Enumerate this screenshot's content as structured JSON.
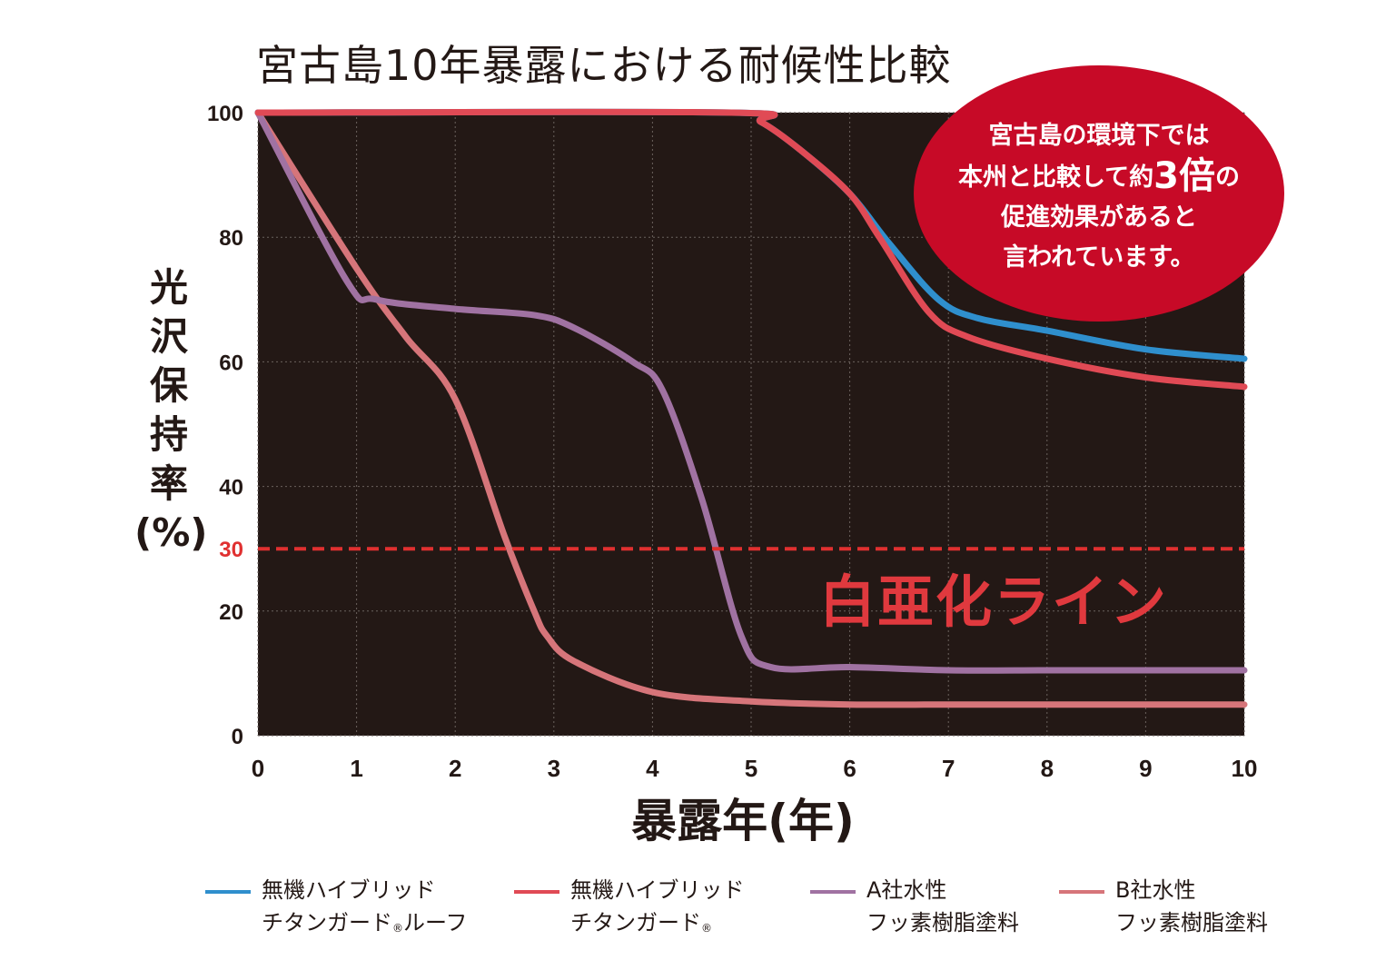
{
  "title": "宮古島10年暴露における耐候性比較",
  "callout": {
    "line1": "宮古島の環境下では",
    "line2_pre": "本州と比較して約",
    "line2_big": "3倍",
    "line2_post": "の",
    "line3": "促進効果があると",
    "line4": "言われています。"
  },
  "chalk_label": "白亜化ライン",
  "colors": {
    "plot_bg": "#231815",
    "roof": "#2f8fcd",
    "titanguard": "#e04a55",
    "a_company": "#a072a2",
    "b_company": "#d6757a",
    "threshold": "#e03030"
  },
  "chart_data": {
    "type": "line",
    "title": "宮古島10年暴露における耐候性比較",
    "xlabel": "暴露年(年)",
    "ylabel_chars": [
      "光",
      "沢",
      "保",
      "持",
      "率",
      "(%)"
    ],
    "xlim": [
      0,
      10
    ],
    "ylim": [
      0,
      100
    ],
    "x_ticks": [
      0,
      1,
      2,
      3,
      4,
      5,
      6,
      7,
      8,
      9,
      10
    ],
    "y_ticks": [
      0,
      20,
      40,
      60,
      80,
      100
    ],
    "threshold": {
      "value": 30,
      "label": "30"
    },
    "grid": true,
    "legend_position": "bottom",
    "series": [
      {
        "key": "b_company",
        "name_line1": "B社水性",
        "name_line2": "フッ素樹脂塗料",
        "points": [
          [
            0,
            100
          ],
          [
            1,
            75
          ],
          [
            1.5,
            64
          ],
          [
            2,
            54
          ],
          [
            2.5,
            32
          ],
          [
            2.8,
            20
          ],
          [
            2.93,
            16
          ],
          [
            3.2,
            12
          ],
          [
            4,
            7
          ],
          [
            5,
            5.5
          ],
          [
            6,
            5
          ],
          [
            7,
            5
          ],
          [
            8,
            5
          ],
          [
            9,
            5
          ],
          [
            10,
            5
          ]
        ]
      },
      {
        "key": "a_company",
        "name_line1": "A社水性",
        "name_line2": "フッ素樹脂塗料",
        "points": [
          [
            0,
            100
          ],
          [
            0.9,
            73
          ],
          [
            1.2,
            70
          ],
          [
            2,
            68.5
          ],
          [
            2.8,
            67.5
          ],
          [
            3.2,
            65.5
          ],
          [
            3.8,
            60
          ],
          [
            4.1,
            55.5
          ],
          [
            4.5,
            38
          ],
          [
            4.9,
            16
          ],
          [
            5.2,
            11
          ],
          [
            6,
            11
          ],
          [
            7,
            10.5
          ],
          [
            8,
            10.5
          ],
          [
            9,
            10.5
          ],
          [
            10,
            10.5
          ]
        ]
      },
      {
        "key": "roof",
        "name_line1": "無機ハイブリッド",
        "name_line2": "チタンガード",
        "name_line2_suffix": "ルーフ",
        "points": [
          [
            0,
            100
          ],
          [
            4.8,
            100
          ],
          [
            5.1,
            98.5
          ],
          [
            5.5,
            94
          ],
          [
            6,
            87
          ],
          [
            6.4,
            79
          ],
          [
            6.9,
            70
          ],
          [
            7.3,
            67
          ],
          [
            8,
            65
          ],
          [
            9,
            62
          ],
          [
            10,
            60.5
          ]
        ]
      },
      {
        "key": "titanguard",
        "name_line1": "無機ハイブリッド",
        "name_line2": "チタンガード",
        "points": [
          [
            0,
            100
          ],
          [
            4.8,
            100
          ],
          [
            5.1,
            98.5
          ],
          [
            5.5,
            94
          ],
          [
            6,
            87
          ],
          [
            6.3,
            80
          ],
          [
            6.8,
            68
          ],
          [
            7.2,
            64
          ],
          [
            8,
            60.5
          ],
          [
            9,
            57.5
          ],
          [
            10,
            56
          ]
        ]
      }
    ]
  },
  "legend": [
    {
      "key": "roof",
      "line1": "無機ハイブリッド",
      "line2": "チタンガード",
      "reg": "®",
      "line2_suffix": "ルーフ"
    },
    {
      "key": "titanguard",
      "line1": "無機ハイブリッド",
      "line2": "チタンガード",
      "reg": "®",
      "line2_suffix": ""
    },
    {
      "key": "a_company",
      "line1": "A社水性",
      "line2": "フッ素樹脂塗料"
    },
    {
      "key": "b_company",
      "line1": "B社水性",
      "line2": "フッ素樹脂塗料"
    }
  ]
}
